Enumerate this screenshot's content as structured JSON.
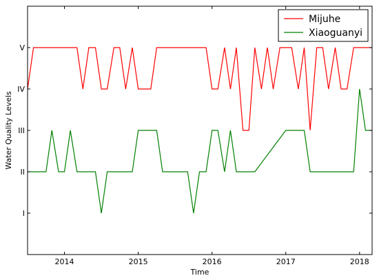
{
  "chart_data": {
    "type": "line",
    "title": "",
    "xlabel": "Time",
    "ylabel": "Water Quality Levels",
    "xlim": [
      2013.5,
      2018.17
    ],
    "ylim": [
      0,
      6
    ],
    "x_ticks": [
      {
        "value": 2014,
        "label": "2014"
      },
      {
        "value": 2015,
        "label": "2015"
      },
      {
        "value": 2016,
        "label": "2016"
      },
      {
        "value": 2017,
        "label": "2017"
      },
      {
        "value": 2018,
        "label": "2018"
      }
    ],
    "y_ticks": [
      {
        "value": 1,
        "label": "I"
      },
      {
        "value": 2,
        "label": "II"
      },
      {
        "value": 3,
        "label": "III"
      },
      {
        "value": 4,
        "label": "IV"
      },
      {
        "value": 5,
        "label": "V"
      }
    ],
    "grid": false,
    "legend_position": "top-right",
    "series": [
      {
        "name": "Mijuhe",
        "color": "#ff0000",
        "points": [
          [
            2013.5,
            4
          ],
          [
            2013.58,
            5
          ],
          [
            2013.67,
            5
          ],
          [
            2013.75,
            5
          ],
          [
            2013.83,
            5
          ],
          [
            2013.92,
            5
          ],
          [
            2014.0,
            5
          ],
          [
            2014.08,
            5
          ],
          [
            2014.17,
            5
          ],
          [
            2014.25,
            4
          ],
          [
            2014.33,
            5
          ],
          [
            2014.42,
            5
          ],
          [
            2014.5,
            4
          ],
          [
            2014.58,
            4
          ],
          [
            2014.67,
            5
          ],
          [
            2014.75,
            5
          ],
          [
            2014.83,
            4
          ],
          [
            2014.92,
            5
          ],
          [
            2015.0,
            4
          ],
          [
            2015.08,
            4
          ],
          [
            2015.17,
            4
          ],
          [
            2015.25,
            5
          ],
          [
            2015.33,
            5
          ],
          [
            2015.42,
            5
          ],
          [
            2015.5,
            5
          ],
          [
            2015.58,
            5
          ],
          [
            2015.67,
            5
          ],
          [
            2015.75,
            5
          ],
          [
            2015.83,
            5
          ],
          [
            2015.92,
            5
          ],
          [
            2016.0,
            4
          ],
          [
            2016.08,
            4
          ],
          [
            2016.17,
            5
          ],
          [
            2016.25,
            4
          ],
          [
            2016.33,
            5
          ],
          [
            2016.42,
            3
          ],
          [
            2016.5,
            3
          ],
          [
            2016.58,
            5
          ],
          [
            2016.67,
            4
          ],
          [
            2016.75,
            5
          ],
          [
            2016.83,
            4
          ],
          [
            2016.92,
            5
          ],
          [
            2017.0,
            5
          ],
          [
            2017.08,
            5
          ],
          [
            2017.17,
            4
          ],
          [
            2017.25,
            5
          ],
          [
            2017.33,
            3
          ],
          [
            2017.42,
            5
          ],
          [
            2017.5,
            5
          ],
          [
            2017.58,
            4
          ],
          [
            2017.67,
            5
          ],
          [
            2017.75,
            4
          ],
          [
            2017.83,
            4
          ],
          [
            2017.92,
            5
          ],
          [
            2018.0,
            5
          ],
          [
            2018.08,
            5
          ],
          [
            2018.17,
            5
          ]
        ]
      },
      {
        "name": "Xiaoguanyi",
        "color": "#008000",
        "points": [
          [
            2013.5,
            2
          ],
          [
            2013.58,
            2
          ],
          [
            2013.67,
            2
          ],
          [
            2013.75,
            2
          ],
          [
            2013.83,
            3
          ],
          [
            2013.92,
            2
          ],
          [
            2014.0,
            2
          ],
          [
            2014.08,
            3
          ],
          [
            2014.17,
            2
          ],
          [
            2014.25,
            2
          ],
          [
            2014.33,
            2
          ],
          [
            2014.42,
            2
          ],
          [
            2014.5,
            1
          ],
          [
            2014.58,
            2
          ],
          [
            2014.67,
            2
          ],
          [
            2014.75,
            2
          ],
          [
            2014.83,
            2
          ],
          [
            2014.92,
            2
          ],
          [
            2015.0,
            3
          ],
          [
            2015.08,
            3
          ],
          [
            2015.17,
            3
          ],
          [
            2015.25,
            3
          ],
          [
            2015.33,
            2
          ],
          [
            2015.42,
            2
          ],
          [
            2015.5,
            2
          ],
          [
            2015.58,
            2
          ],
          [
            2015.67,
            2
          ],
          [
            2015.75,
            1
          ],
          [
            2015.83,
            2
          ],
          [
            2015.92,
            2
          ],
          [
            2016.0,
            3
          ],
          [
            2016.08,
            3
          ],
          [
            2016.17,
            2
          ],
          [
            2016.25,
            3
          ],
          [
            2016.33,
            2
          ],
          [
            2016.42,
            2
          ],
          [
            2016.5,
            2
          ],
          [
            2016.58,
            2
          ],
          [
            2017.0,
            3
          ],
          [
            2017.08,
            3
          ],
          [
            2017.17,
            3
          ],
          [
            2017.25,
            3
          ],
          [
            2017.33,
            2
          ],
          [
            2017.42,
            2
          ],
          [
            2017.5,
            2
          ],
          [
            2017.58,
            2
          ],
          [
            2017.67,
            2
          ],
          [
            2017.75,
            2
          ],
          [
            2017.83,
            2
          ],
          [
            2017.92,
            2
          ],
          [
            2018.0,
            4
          ],
          [
            2018.08,
            3
          ],
          [
            2018.17,
            3
          ]
        ]
      }
    ]
  }
}
